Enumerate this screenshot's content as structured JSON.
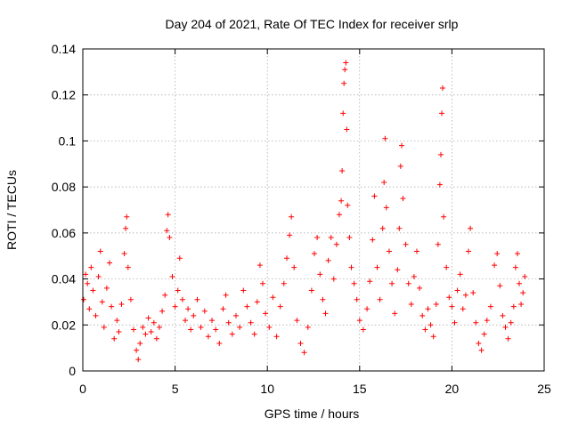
{
  "chart_data": {
    "type": "scatter",
    "title": "Day 204 of 2021, Rate Of TEC Index for receiver srlp",
    "xlabel": "GPS time / hours",
    "ylabel": "ROTI / TECUs",
    "xlim": [
      0,
      25
    ],
    "ylim": [
      0,
      0.14
    ],
    "x_ticks": [
      0,
      5,
      10,
      15,
      20,
      25
    ],
    "x_tick_labels": [
      "0",
      "5",
      "10",
      "15",
      "20",
      "25"
    ],
    "y_ticks": [
      0,
      0.02,
      0.04,
      0.06,
      0.08,
      0.1,
      0.12,
      0.14
    ],
    "y_tick_labels": [
      "0",
      "0.02",
      "0.04",
      "0.06",
      "0.08",
      "0.1",
      "0.12",
      "0.14"
    ],
    "grid": true,
    "marker": "plus",
    "color": "#ff0000",
    "series": [
      {
        "name": "ROTI",
        "points": [
          [
            0.05,
            0.031
          ],
          [
            0.15,
            0.042
          ],
          [
            0.25,
            0.038
          ],
          [
            0.35,
            0.027
          ],
          [
            0.45,
            0.045
          ],
          [
            0.55,
            0.035
          ],
          [
            0.7,
            0.024
          ],
          [
            0.85,
            0.041
          ],
          [
            0.95,
            0.052
          ],
          [
            1.05,
            0.03
          ],
          [
            1.15,
            0.019
          ],
          [
            1.3,
            0.036
          ],
          [
            1.45,
            0.047
          ],
          [
            1.55,
            0.028
          ],
          [
            1.7,
            0.014
          ],
          [
            1.85,
            0.022
          ],
          [
            1.95,
            0.017
          ],
          [
            2.1,
            0.029
          ],
          [
            2.25,
            0.051
          ],
          [
            2.32,
            0.062
          ],
          [
            2.38,
            0.067
          ],
          [
            2.45,
            0.045
          ],
          [
            2.6,
            0.031
          ],
          [
            2.75,
            0.018
          ],
          [
            2.9,
            0.009
          ],
          [
            3.0,
            0.005
          ],
          [
            3.1,
            0.012
          ],
          [
            3.25,
            0.019
          ],
          [
            3.4,
            0.016
          ],
          [
            3.55,
            0.023
          ],
          [
            3.7,
            0.017
          ],
          [
            3.85,
            0.021
          ],
          [
            4.0,
            0.014
          ],
          [
            4.15,
            0.019
          ],
          [
            4.3,
            0.026
          ],
          [
            4.45,
            0.033
          ],
          [
            4.55,
            0.061
          ],
          [
            4.62,
            0.068
          ],
          [
            4.7,
            0.058
          ],
          [
            4.85,
            0.041
          ],
          [
            5.0,
            0.028
          ],
          [
            5.15,
            0.035
          ],
          [
            5.25,
            0.049
          ],
          [
            5.4,
            0.031
          ],
          [
            5.55,
            0.022
          ],
          [
            5.7,
            0.027
          ],
          [
            5.85,
            0.018
          ],
          [
            6.0,
            0.024
          ],
          [
            6.2,
            0.031
          ],
          [
            6.4,
            0.019
          ],
          [
            6.6,
            0.026
          ],
          [
            6.8,
            0.015
          ],
          [
            7.0,
            0.022
          ],
          [
            7.2,
            0.018
          ],
          [
            7.4,
            0.012
          ],
          [
            7.6,
            0.027
          ],
          [
            7.75,
            0.033
          ],
          [
            7.9,
            0.021
          ],
          [
            8.1,
            0.016
          ],
          [
            8.3,
            0.024
          ],
          [
            8.5,
            0.019
          ],
          [
            8.7,
            0.035
          ],
          [
            8.9,
            0.028
          ],
          [
            9.1,
            0.021
          ],
          [
            9.3,
            0.016
          ],
          [
            9.45,
            0.03
          ],
          [
            9.6,
            0.046
          ],
          [
            9.75,
            0.038
          ],
          [
            9.9,
            0.025
          ],
          [
            10.1,
            0.019
          ],
          [
            10.3,
            0.032
          ],
          [
            10.5,
            0.015
          ],
          [
            10.7,
            0.028
          ],
          [
            10.9,
            0.038
          ],
          [
            11.05,
            0.049
          ],
          [
            11.2,
            0.059
          ],
          [
            11.3,
            0.067
          ],
          [
            11.45,
            0.045
          ],
          [
            11.6,
            0.022
          ],
          [
            11.8,
            0.012
          ],
          [
            12.0,
            0.008
          ],
          [
            12.2,
            0.019
          ],
          [
            12.4,
            0.035
          ],
          [
            12.55,
            0.051
          ],
          [
            12.7,
            0.058
          ],
          [
            12.85,
            0.042
          ],
          [
            13.0,
            0.031
          ],
          [
            13.15,
            0.025
          ],
          [
            13.3,
            0.048
          ],
          [
            13.45,
            0.058
          ],
          [
            13.6,
            0.04
          ],
          [
            13.75,
            0.055
          ],
          [
            13.9,
            0.068
          ],
          [
            14.0,
            0.074
          ],
          [
            14.05,
            0.087
          ],
          [
            14.1,
            0.112
          ],
          [
            14.15,
            0.125
          ],
          [
            14.2,
            0.131
          ],
          [
            14.25,
            0.134
          ],
          [
            14.3,
            0.105
          ],
          [
            14.35,
            0.072
          ],
          [
            14.45,
            0.058
          ],
          [
            14.55,
            0.045
          ],
          [
            14.7,
            0.038
          ],
          [
            14.85,
            0.031
          ],
          [
            15.0,
            0.022
          ],
          [
            15.2,
            0.018
          ],
          [
            15.4,
            0.027
          ],
          [
            15.55,
            0.039
          ],
          [
            15.7,
            0.057
          ],
          [
            15.8,
            0.076
          ],
          [
            15.95,
            0.045
          ],
          [
            16.1,
            0.031
          ],
          [
            16.25,
            0.062
          ],
          [
            16.32,
            0.082
          ],
          [
            16.38,
            0.101
          ],
          [
            16.45,
            0.071
          ],
          [
            16.6,
            0.052
          ],
          [
            16.75,
            0.038
          ],
          [
            16.9,
            0.025
          ],
          [
            17.05,
            0.044
          ],
          [
            17.15,
            0.062
          ],
          [
            17.22,
            0.089
          ],
          [
            17.28,
            0.098
          ],
          [
            17.35,
            0.075
          ],
          [
            17.5,
            0.055
          ],
          [
            17.65,
            0.038
          ],
          [
            17.8,
            0.029
          ],
          [
            17.95,
            0.041
          ],
          [
            18.1,
            0.052
          ],
          [
            18.25,
            0.036
          ],
          [
            18.4,
            0.024
          ],
          [
            18.55,
            0.018
          ],
          [
            18.7,
            0.027
          ],
          [
            18.85,
            0.02
          ],
          [
            19.0,
            0.015
          ],
          [
            19.15,
            0.029
          ],
          [
            19.25,
            0.055
          ],
          [
            19.35,
            0.081
          ],
          [
            19.4,
            0.094
          ],
          [
            19.45,
            0.112
          ],
          [
            19.5,
            0.123
          ],
          [
            19.55,
            0.067
          ],
          [
            19.7,
            0.045
          ],
          [
            19.85,
            0.032
          ],
          [
            20.0,
            0.028
          ],
          [
            20.15,
            0.021
          ],
          [
            20.3,
            0.035
          ],
          [
            20.45,
            0.042
          ],
          [
            20.6,
            0.027
          ],
          [
            20.75,
            0.033
          ],
          [
            20.9,
            0.052
          ],
          [
            21.0,
            0.062
          ],
          [
            21.15,
            0.034
          ],
          [
            21.3,
            0.021
          ],
          [
            21.45,
            0.012
          ],
          [
            21.6,
            0.009
          ],
          [
            21.75,
            0.016
          ],
          [
            21.9,
            0.022
          ],
          [
            22.1,
            0.028
          ],
          [
            22.3,
            0.046
          ],
          [
            22.45,
            0.051
          ],
          [
            22.6,
            0.037
          ],
          [
            22.75,
            0.024
          ],
          [
            22.9,
            0.019
          ],
          [
            23.05,
            0.014
          ],
          [
            23.2,
            0.021
          ],
          [
            23.35,
            0.028
          ],
          [
            23.45,
            0.045
          ],
          [
            23.55,
            0.051
          ],
          [
            23.65,
            0.038
          ],
          [
            23.75,
            0.029
          ],
          [
            23.85,
            0.034
          ],
          [
            23.95,
            0.041
          ]
        ]
      }
    ]
  }
}
